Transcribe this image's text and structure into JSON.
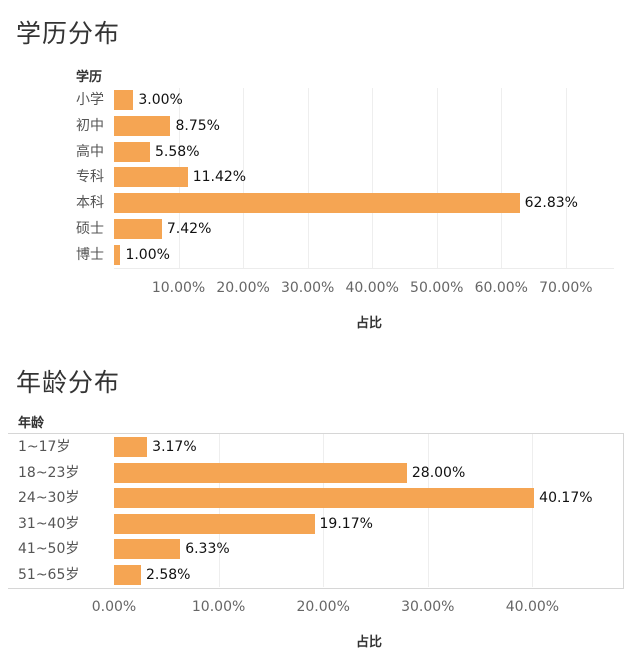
{
  "chart_data": [
    {
      "type": "bar",
      "orientation": "horizontal",
      "title": "学历分布",
      "dimension_label": "学历",
      "categories": [
        "小学",
        "初中",
        "高中",
        "专科",
        "本科",
        "硕士",
        "博士"
      ],
      "values": [
        3.0,
        8.75,
        5.58,
        11.42,
        62.83,
        7.42,
        1.0
      ],
      "value_labels": [
        "3.00%",
        "8.75%",
        "5.58%",
        "11.42%",
        "62.83%",
        "7.42%",
        "1.00%"
      ],
      "xlabel": "占比",
      "ylabel": "学历",
      "xticks": [
        "10.00%",
        "20.00%",
        "30.00%",
        "40.00%",
        "50.00%",
        "60.00%",
        "70.00%"
      ],
      "xlim": [
        0,
        75
      ],
      "grid": true,
      "color": "#F5A553"
    },
    {
      "type": "bar",
      "orientation": "horizontal",
      "title": "年龄分布",
      "dimension_label": "年龄",
      "categories": [
        "1~17岁",
        "18~23岁",
        "24~30岁",
        "31~40岁",
        "41~50岁",
        "51~65岁"
      ],
      "values": [
        3.17,
        28.0,
        40.17,
        19.17,
        6.33,
        2.58
      ],
      "value_labels": [
        "3.17%",
        "28.00%",
        "40.17%",
        "19.17%",
        "6.33%",
        "2.58%"
      ],
      "xlabel": "占比",
      "ylabel": "年龄",
      "xticks": [
        "0.00%",
        "10.00%",
        "20.00%",
        "30.00%",
        "40.00%"
      ],
      "xlim": [
        0,
        48
      ],
      "grid": true,
      "color": "#F5A553"
    }
  ],
  "sections": {
    "edu": {
      "title": "学历分布",
      "dim": "学历",
      "axis_title": "占比"
    },
    "age": {
      "title": "年龄分布",
      "dim": "年龄",
      "axis_title": "占比"
    }
  }
}
